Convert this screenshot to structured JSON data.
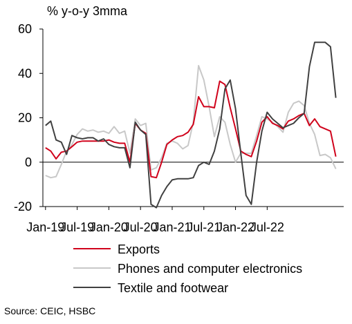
{
  "chart_data": {
    "type": "line",
    "ylabel": "% y-o-y 3mma",
    "ylim": [
      -20,
      60
    ],
    "yticks": [
      -20,
      0,
      20,
      40,
      60
    ],
    "x_tick_labels": [
      "Jan-19",
      "Jul-19",
      "Jan-20",
      "Jul-20",
      "Jan-21",
      "Jul-21",
      "Jan-22",
      "Jul-22"
    ],
    "x_start": "2019-01",
    "grid": false,
    "legend_position": "bottom",
    "series": [
      {
        "name": "Exports",
        "color": "#d0021b",
        "values": [
          6.5,
          5,
          1.5,
          4.5,
          5,
          7,
          9,
          9.5,
          9.5,
          9.5,
          9.5,
          9.5,
          10,
          9,
          8.5,
          8.5,
          0,
          17.5,
          14.5,
          13,
          -6.5,
          -7,
          0,
          8,
          10,
          11.5,
          12,
          13.5,
          17,
          29.5,
          25,
          25,
          24.5,
          36.5,
          35,
          24.5,
          15,
          5,
          3.5,
          2.5,
          9.5,
          18,
          20.5,
          17.5,
          16.5,
          15,
          18.5,
          19.5,
          21,
          22,
          16.5,
          19.5,
          16,
          15,
          14,
          2.5
        ]
      },
      {
        "name": "Phones and computer electronics",
        "color": "#c8c8c8",
        "values": [
          -6,
          -7,
          -6.5,
          -1,
          5,
          8,
          12.5,
          15,
          14,
          14.5,
          13.5,
          14,
          13,
          16,
          13,
          14,
          4,
          19.5,
          16.5,
          17.5,
          -3.5,
          -2.5,
          2,
          8.5,
          9.5,
          8.5,
          6,
          7.5,
          18,
          43.5,
          37,
          25,
          11.5,
          20.5,
          18,
          8,
          0,
          4,
          4,
          4,
          12,
          20.5,
          19.5,
          18,
          16,
          13.5,
          22.5,
          26.5,
          27.5,
          25.5,
          17.5,
          12.5,
          3,
          3.5,
          2,
          -3
        ]
      },
      {
        "name": "Textile and footwear",
        "color": "#404040",
        "values": [
          16.5,
          18.5,
          10,
          9,
          3.5,
          12,
          11,
          10.5,
          11,
          11,
          9.5,
          10.5,
          8,
          7,
          6.5,
          6.5,
          -2.5,
          18,
          14.5,
          12.5,
          -19,
          -20.5,
          -15,
          -11,
          -8,
          -7.5,
          -7.5,
          -7.5,
          -7,
          -1.5,
          0,
          -1,
          5,
          15,
          33,
          37,
          24,
          4,
          -15,
          -19,
          0,
          14,
          22.5,
          19.5,
          17.5,
          15.5,
          16.5,
          17.5,
          20,
          22,
          43,
          54,
          54,
          54,
          52,
          29
        ]
      }
    ]
  },
  "source_text": "Source: CEIC, HSBC"
}
